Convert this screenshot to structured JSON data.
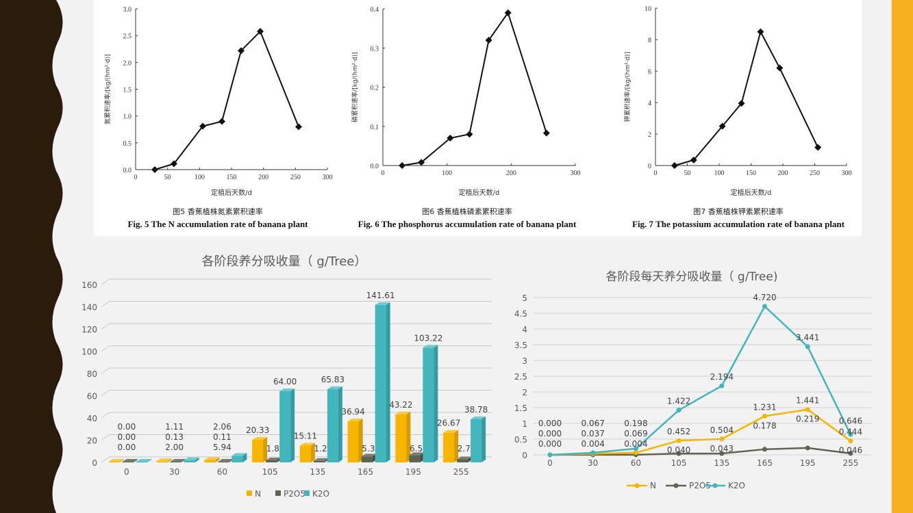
{
  "colors": {
    "left_band": "#2b1b0a",
    "right_band": "#f5b120",
    "N": "#f7b500",
    "P2O5": "#5f6352",
    "K2O": "#43b5bd"
  },
  "chart_data": [
    {
      "type": "line",
      "title_cn": "图5   香蕉植株氮素累积速率",
      "title": "Fig. 5   The N accumulation rate of banana plant",
      "xlabel": "定植后天数/d",
      "ylabel": "氮累积速率/[kg/(hm²·d)]",
      "xlim": [
        0,
        300
      ],
      "xticks": [
        0,
        50,
        100,
        150,
        200,
        250,
        300
      ],
      "ylim": [
        0,
        3.0
      ],
      "yticks": [
        "0.0",
        "0.5",
        "1.0",
        "1.5",
        "2.0",
        "2.5",
        "3.0"
      ],
      "x": [
        30,
        60,
        105,
        135,
        165,
        195,
        255
      ],
      "y": [
        0.0,
        0.11,
        0.81,
        0.9,
        2.22,
        2.58,
        0.8
      ]
    },
    {
      "type": "line",
      "title_cn": "图6   香蕉植株磷素累积速率",
      "title": "Fig. 6   The phosphorus accumulation rate of banana plant",
      "xlabel": "定植后天数/d",
      "ylabel": "磷累积速率/[kg/(hm²·d)]",
      "xlim": [
        0,
        300
      ],
      "xticks": [
        0,
        100,
        200,
        300
      ],
      "ylim": [
        0,
        0.4
      ],
      "yticks": [
        "0.0",
        "0.1",
        "0.2",
        "0.3",
        "0.4"
      ],
      "x": [
        30,
        60,
        105,
        135,
        165,
        195,
        255
      ],
      "y": [
        0.0,
        0.008,
        0.07,
        0.08,
        0.32,
        0.39,
        0.083
      ]
    },
    {
      "type": "line",
      "title_cn": "图7   香蕉植株钾素累积速率",
      "title": "Fig. 7   The potassium accumulation rate of banana plant",
      "xlabel": "定植后天数/d",
      "ylabel": "钾累积速率/[kg/(hm²·d)]",
      "xlim": [
        0,
        300
      ],
      "xticks": [
        0,
        50,
        100,
        150,
        200,
        250,
        300
      ],
      "ylim": [
        0,
        10
      ],
      "yticks": [
        "0",
        "2",
        "4",
        "6",
        "8",
        "10"
      ],
      "x": [
        30,
        60,
        105,
        135,
        165,
        195,
        255
      ],
      "y": [
        0.0,
        0.35,
        2.5,
        3.95,
        8.5,
        6.2,
        1.15
      ]
    },
    {
      "type": "bar",
      "title": "各阶段养分吸收量（ g/Tree）",
      "categories": [
        "0",
        "30",
        "60",
        "105",
        "135",
        "165",
        "195",
        "255"
      ],
      "ylim": [
        0,
        160
      ],
      "yticks": [
        "0",
        "20",
        "40",
        "60",
        "80",
        "100",
        "120",
        "140",
        "160"
      ],
      "legend": "bottom",
      "series": [
        {
          "name": "N",
          "values": [
            0.0,
            1.11,
            2.06,
            20.33,
            15.11,
            36.94,
            43.22,
            26.67
          ],
          "labels": [
            "0.00",
            "1.11",
            "2.06",
            "20.33",
            "15.11",
            "36.94",
            "43.22",
            "26.67"
          ]
        },
        {
          "name": "P2O5",
          "values": [
            0.0,
            0.13,
            0.11,
            1.82,
            1.28,
            5.33,
            6.56,
            2.78
          ],
          "labels": [
            "0.00",
            "0.13",
            "0.11",
            "1.82",
            "1.28",
            "5.33",
            "6.56",
            "2.78"
          ]
        },
        {
          "name": "K2O",
          "values": [
            0.0,
            2.0,
            5.94,
            64.0,
            65.83,
            141.61,
            103.22,
            38.78
          ],
          "labels": [
            "0.00",
            "2.00",
            "5.94",
            "64.00",
            "65.83",
            "141.61",
            "103.22",
            "38.78"
          ]
        }
      ]
    },
    {
      "type": "line",
      "title": "各阶段每天养分吸收量（ g/Tree)",
      "categories": [
        "0",
        "30",
        "60",
        "105",
        "135",
        "165",
        "195",
        "255"
      ],
      "ylim": [
        0,
        5
      ],
      "yticks": [
        "0",
        "0.5",
        "1",
        "1.5",
        "2",
        "2.5",
        "3",
        "3.5",
        "4",
        "4.5",
        "5"
      ],
      "legend": "bottom",
      "series": [
        {
          "name": "N",
          "values": [
            0.0,
            0.037,
            0.069,
            0.452,
            0.504,
            1.231,
            1.441,
            0.444
          ],
          "labels": [
            "0.000",
            "0.037",
            "0.069",
            "0.452",
            "0.504",
            "1.231",
            "1.441",
            "0.444"
          ]
        },
        {
          "name": "P2O5",
          "values": [
            0.0,
            0.004,
            0.004,
            0.04,
            0.043,
            0.178,
            0.219,
            0.046
          ],
          "labels": [
            "0.000",
            "0.004",
            "0.004",
            "0.040",
            "0.043",
            "0.178",
            "0.219",
            "0.046"
          ]
        },
        {
          "name": "K2O",
          "values": [
            0.0,
            0.067,
            0.198,
            1.422,
            2.194,
            4.72,
            3.441,
            0.646
          ],
          "labels": [
            "0.000",
            "0.067",
            "0.198",
            "1.422",
            "2.194",
            "4.720",
            "3.441",
            "0.646"
          ]
        }
      ]
    }
  ]
}
